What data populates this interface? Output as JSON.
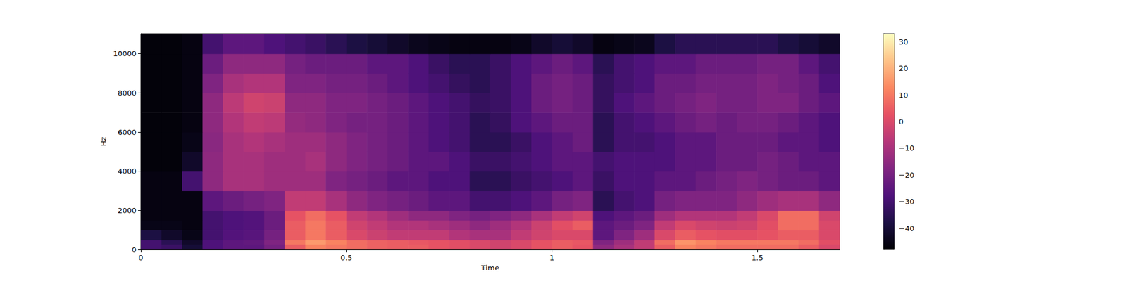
{
  "chart_data": {
    "type": "heatmap",
    "x_label": "Time",
    "y_label": "Hz",
    "xlim": [
      0,
      1.7
    ],
    "ylim": [
      0,
      11025
    ],
    "xticks": [
      0,
      0.5,
      1,
      1.5
    ],
    "yticks": [
      0,
      2000,
      4000,
      6000,
      8000,
      10000
    ],
    "color": "magma",
    "x_bins": [
      0,
      0.05,
      0.1,
      0.15,
      0.2,
      0.25,
      0.3,
      0.35,
      0.4,
      0.45,
      0.5,
      0.55,
      0.6,
      0.65,
      0.7,
      0.75,
      0.8,
      0.85,
      0.9,
      0.95,
      1.0,
      1.05,
      1.1,
      1.15,
      1.2,
      1.25,
      1.3,
      1.35,
      1.4,
      1.45,
      1.5,
      1.55,
      1.6,
      1.65,
      1.7
    ],
    "y_bins": [
      0,
      250,
      500,
      1000,
      1500,
      2000,
      3000,
      4000,
      5000,
      6000,
      7000,
      8000,
      9000,
      10000,
      11025
    ],
    "values": [
      [
        -30,
        -32,
        -40,
        -28,
        -25,
        -25,
        -20,
        5,
        12,
        10,
        8,
        6,
        5,
        5,
        3,
        2,
        0,
        -2,
        0,
        3,
        5,
        3,
        -15,
        -10,
        -5,
        5,
        12,
        10,
        8,
        8,
        8,
        8,
        5,
        0
      ],
      [
        -30,
        -35,
        -42,
        -28,
        -25,
        -24,
        -18,
        10,
        16,
        12,
        8,
        6,
        5,
        4,
        3,
        2,
        0,
        -2,
        0,
        3,
        5,
        4,
        -18,
        -12,
        -5,
        8,
        15,
        12,
        10,
        10,
        10,
        10,
        8,
        2
      ],
      [
        -38,
        -42,
        -45,
        -30,
        -27,
        -26,
        -20,
        5,
        10,
        5,
        0,
        -3,
        -5,
        -5,
        -5,
        -8,
        -10,
        -10,
        -5,
        -2,
        0,
        0,
        -25,
        -18,
        -12,
        0,
        5,
        3,
        2,
        2,
        3,
        5,
        5,
        0
      ],
      [
        -45,
        -45,
        -46,
        -30,
        -28,
        -27,
        -22,
        5,
        10,
        5,
        -2,
        -5,
        -8,
        -8,
        -10,
        -12,
        -15,
        -12,
        -8,
        -3,
        2,
        5,
        -25,
        -22,
        -18,
        -5,
        0,
        -2,
        -3,
        -2,
        2,
        8,
        8,
        0
      ],
      [
        -46,
        -46,
        -46,
        -30,
        -28,
        -27,
        -22,
        3,
        8,
        3,
        -5,
        -8,
        -12,
        -15,
        -15,
        -18,
        -20,
        -18,
        -15,
        -10,
        -5,
        -2,
        -28,
        -25,
        -22,
        -12,
        -8,
        -8,
        -8,
        -5,
        0,
        8,
        8,
        -2
      ],
      [
        -46,
        -46,
        -46,
        -25,
        -22,
        -20,
        -18,
        -5,
        -5,
        -10,
        -15,
        -18,
        -20,
        -22,
        -25,
        -25,
        -30,
        -30,
        -28,
        -25,
        -20,
        -18,
        -35,
        -30,
        -28,
        -20,
        -18,
        -18,
        -18,
        -15,
        -12,
        -10,
        -10,
        -15
      ],
      [
        -46,
        -46,
        -30,
        -15,
        -10,
        -10,
        -12,
        -12,
        -12,
        -18,
        -20,
        -22,
        -25,
        -25,
        -28,
        -28,
        -35,
        -35,
        -32,
        -30,
        -28,
        -25,
        -32,
        -28,
        -28,
        -25,
        -25,
        -22,
        -20,
        -18,
        -20,
        -22,
        -22,
        -25
      ],
      [
        -47,
        -47,
        -42,
        -15,
        -10,
        -10,
        -12,
        -12,
        -10,
        -15,
        -18,
        -20,
        -22,
        -25,
        -25,
        -28,
        -32,
        -32,
        -30,
        -28,
        -25,
        -25,
        -30,
        -28,
        -28,
        -28,
        -25,
        -25,
        -22,
        -22,
        -20,
        -22,
        -25,
        -25
      ],
      [
        -47,
        -47,
        -45,
        -16,
        -10,
        -8,
        -10,
        -12,
        -12,
        -15,
        -18,
        -20,
        -22,
        -25,
        -28,
        -30,
        -35,
        -35,
        -32,
        -28,
        -25,
        -22,
        -35,
        -30,
        -30,
        -28,
        -25,
        -25,
        -22,
        -22,
        -22,
        -25,
        -25,
        -28
      ],
      [
        -47,
        -47,
        -46,
        -15,
        -8,
        -5,
        -6,
        -14,
        -15,
        -18,
        -20,
        -20,
        -22,
        -25,
        -28,
        -30,
        -35,
        -33,
        -28,
        -25,
        -22,
        -22,
        -35,
        -30,
        -28,
        -25,
        -22,
        -20,
        -22,
        -20,
        -20,
        -22,
        -25,
        -28
      ],
      [
        -47,
        -47,
        -46,
        -15,
        -6,
        -2,
        -3,
        -15,
        -15,
        -18,
        -18,
        -20,
        -22,
        -25,
        -28,
        -30,
        -33,
        -32,
        -28,
        -22,
        -20,
        -22,
        -33,
        -28,
        -25,
        -22,
        -20,
        -18,
        -20,
        -20,
        -18,
        -18,
        -22,
        -25
      ],
      [
        -47,
        -47,
        -46,
        -18,
        -10,
        -8,
        -8,
        -18,
        -18,
        -20,
        -20,
        -22,
        -25,
        -28,
        -30,
        -33,
        -35,
        -32,
        -28,
        -22,
        -20,
        -22,
        -33,
        -30,
        -28,
        -22,
        -22,
        -20,
        -20,
        -20,
        -18,
        -20,
        -22,
        -28
      ],
      [
        -47,
        -47,
        -46,
        -22,
        -15,
        -15,
        -15,
        -20,
        -22,
        -22,
        -22,
        -25,
        -25,
        -28,
        -32,
        -35,
        -35,
        -32,
        -28,
        -25,
        -22,
        -25,
        -35,
        -30,
        -28,
        -25,
        -25,
        -22,
        -22,
        -22,
        -20,
        -20,
        -25,
        -30
      ],
      [
        -47,
        -47,
        -46,
        -30,
        -25,
        -25,
        -28,
        -30,
        -32,
        -35,
        -38,
        -40,
        -42,
        -44,
        -45,
        -46,
        -46,
        -46,
        -45,
        -42,
        -40,
        -42,
        -46,
        -45,
        -44,
        -38,
        -35,
        -35,
        -35,
        -35,
        -35,
        -38,
        -40,
        -42
      ]
    ],
    "colorbar": {
      "clim": [
        -48,
        33
      ],
      "ticks": [
        {
          "value": -40,
          "label": "−40"
        },
        {
          "value": -30,
          "label": "−30"
        },
        {
          "value": -20,
          "label": "−20"
        },
        {
          "value": -10,
          "label": "−10"
        },
        0,
        10,
        20,
        30
      ]
    }
  }
}
